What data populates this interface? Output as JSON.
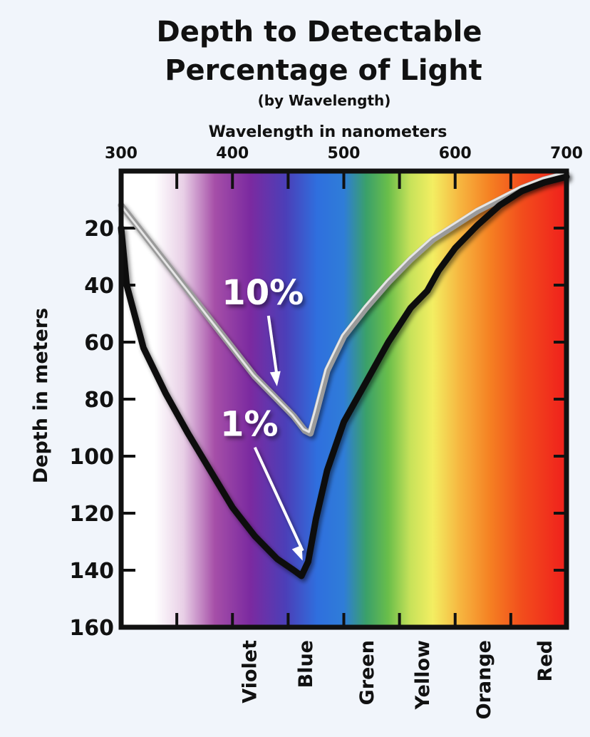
{
  "chart_data": {
    "type": "line",
    "title_line1": "Depth to Detectable",
    "title_line2": "Percentage of Light",
    "subtitle": "(by Wavelength)",
    "xlabel": "Wavelength in nanometers",
    "ylabel": "Depth in meters",
    "x_ticks": [
      300,
      400,
      500,
      600,
      700
    ],
    "y_ticks": [
      20,
      40,
      60,
      80,
      100,
      120,
      140,
      160
    ],
    "xlim": [
      300,
      700
    ],
    "ylim": [
      0,
      160
    ],
    "y_inverted": true,
    "color_bands": [
      {
        "label": "Violet",
        "x": 415
      },
      {
        "label": "Blue",
        "x": 465
      },
      {
        "label": "Green",
        "x": 520
      },
      {
        "label": "Yellow",
        "x": 570
      },
      {
        "label": "Orange",
        "x": 625
      },
      {
        "label": "Red",
        "x": 680
      }
    ],
    "series": [
      {
        "name": "10%",
        "color": "#9a9a9a",
        "x": [
          300,
          320,
          340,
          360,
          380,
          400,
          420,
          440,
          455,
          465,
          470,
          475,
          485,
          500,
          520,
          540,
          560,
          580,
          600,
          620,
          640,
          660,
          680,
          700
        ],
        "y": [
          12,
          22,
          32,
          42,
          52,
          62,
          72,
          80,
          86,
          91,
          92,
          85,
          70,
          58,
          48,
          39,
          31,
          24,
          19,
          14,
          10,
          6,
          3,
          1
        ]
      },
      {
        "name": "1%",
        "color": "#111111",
        "x": [
          300,
          305,
          320,
          340,
          360,
          380,
          400,
          420,
          440,
          455,
          462,
          468,
          475,
          485,
          500,
          520,
          540,
          560,
          575,
          585,
          600,
          620,
          640,
          660,
          680,
          700
        ],
        "y": [
          20,
          40,
          62,
          78,
          92,
          105,
          118,
          128,
          136,
          140,
          142,
          137,
          122,
          105,
          88,
          74,
          60,
          48,
          42,
          35,
          27,
          19,
          12,
          7,
          4,
          2
        ]
      }
    ],
    "annotations": [
      {
        "text": "10%",
        "series": "10%",
        "target_x": 440
      },
      {
        "text": "1%",
        "series": "1%",
        "target_x": 463
      }
    ],
    "grid": false,
    "legend": "none"
  }
}
